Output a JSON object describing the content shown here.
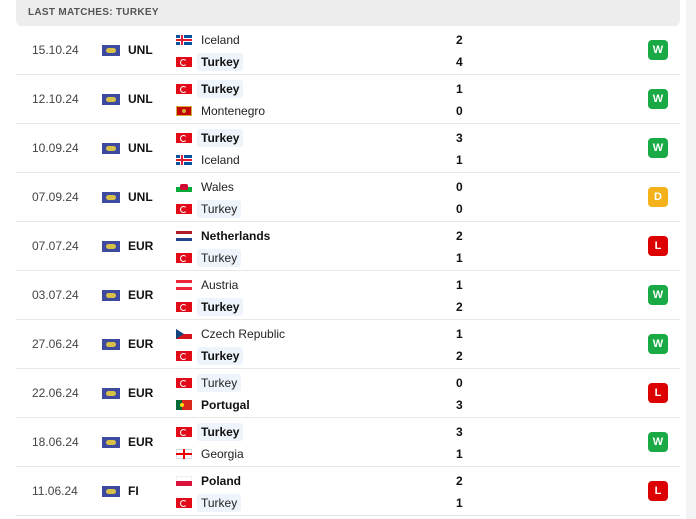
{
  "header": {
    "title": "LAST MATCHES: TURKEY"
  },
  "colors": {
    "W": "#1aaa45",
    "D": "#f3b21a",
    "L": "#dc0000"
  },
  "matches": [
    {
      "date": "15.10.24",
      "comp": "UNL",
      "home": {
        "name": "Iceland",
        "flag": "iceland"
      },
      "away": {
        "name": "Turkey",
        "flag": "turkey"
      },
      "home_score": "2",
      "away_score": "4",
      "result": "W"
    },
    {
      "date": "12.10.24",
      "comp": "UNL",
      "home": {
        "name": "Turkey",
        "flag": "turkey"
      },
      "away": {
        "name": "Montenegro",
        "flag": "montenegro"
      },
      "home_score": "1",
      "away_score": "0",
      "result": "W"
    },
    {
      "date": "10.09.24",
      "comp": "UNL",
      "home": {
        "name": "Turkey",
        "flag": "turkey"
      },
      "away": {
        "name": "Iceland",
        "flag": "iceland"
      },
      "home_score": "3",
      "away_score": "1",
      "result": "W"
    },
    {
      "date": "07.09.24",
      "comp": "UNL",
      "home": {
        "name": "Wales",
        "flag": "wales"
      },
      "away": {
        "name": "Turkey",
        "flag": "turkey"
      },
      "home_score": "0",
      "away_score": "0",
      "result": "D"
    },
    {
      "date": "07.07.24",
      "comp": "EUR",
      "home": {
        "name": "Netherlands",
        "flag": "netherlands"
      },
      "away": {
        "name": "Turkey",
        "flag": "turkey"
      },
      "home_score": "2",
      "away_score": "1",
      "result": "L"
    },
    {
      "date": "03.07.24",
      "comp": "EUR",
      "home": {
        "name": "Austria",
        "flag": "austria"
      },
      "away": {
        "name": "Turkey",
        "flag": "turkey"
      },
      "home_score": "1",
      "away_score": "2",
      "result": "W"
    },
    {
      "date": "27.06.24",
      "comp": "EUR",
      "home": {
        "name": "Czech Republic",
        "flag": "czech"
      },
      "away": {
        "name": "Turkey",
        "flag": "turkey"
      },
      "home_score": "1",
      "away_score": "2",
      "result": "W"
    },
    {
      "date": "22.06.24",
      "comp": "EUR",
      "home": {
        "name": "Turkey",
        "flag": "turkey"
      },
      "away": {
        "name": "Portugal",
        "flag": "portugal"
      },
      "home_score": "0",
      "away_score": "3",
      "result": "L"
    },
    {
      "date": "18.06.24",
      "comp": "EUR",
      "home": {
        "name": "Turkey",
        "flag": "turkey"
      },
      "away": {
        "name": "Georgia",
        "flag": "georgia"
      },
      "home_score": "3",
      "away_score": "1",
      "result": "W"
    },
    {
      "date": "11.06.24",
      "comp": "FI",
      "home": {
        "name": "Poland",
        "flag": "poland"
      },
      "away": {
        "name": "Turkey",
        "flag": "turkey"
      },
      "home_score": "2",
      "away_score": "1",
      "result": "L"
    }
  ]
}
